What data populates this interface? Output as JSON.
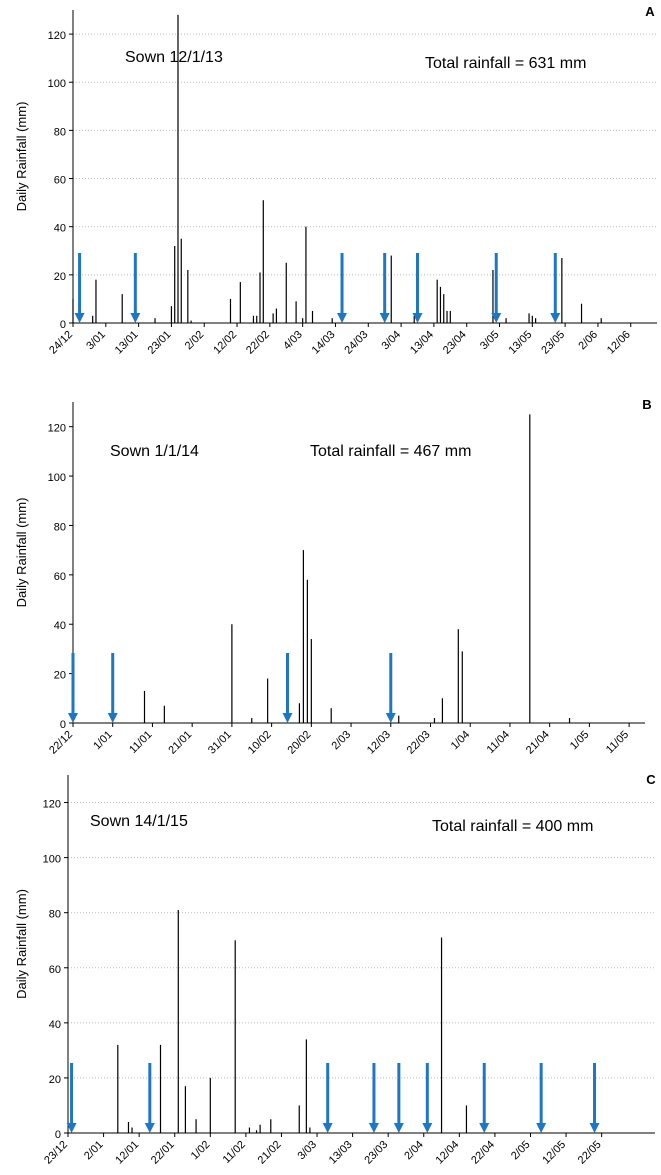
{
  "chart_data": [
    {
      "type": "bar",
      "panel": "A",
      "sown": "Sown   12/1/13",
      "total": "Total rainfall = 631 mm",
      "ylabel": "Daily Rainfall (mm)",
      "color": "#000000",
      "x": [
        "24/12",
        "30/12",
        "31/12",
        "8/01",
        "18/01",
        "23/01",
        "24/01",
        "25/01",
        "26/01",
        "28/01",
        "29/01",
        "10/02",
        "13/02",
        "17/02",
        "18/02",
        "19/02",
        "20/02",
        "23/02",
        "24/02",
        "27/02",
        "2/03",
        "4/03",
        "5/03",
        "7/03",
        "13/03",
        "31/03",
        "7/04",
        "14/04",
        "15/04",
        "16/04",
        "17/04",
        "18/04",
        "1/05",
        "5/05",
        "12/05",
        "13/05",
        "14/05",
        "22/05",
        "28/05",
        "3/06"
      ],
      "values": [
        10,
        3,
        18,
        12,
        2,
        7,
        32,
        128,
        35,
        22,
        1,
        10,
        17,
        3,
        3,
        21,
        51,
        4,
        6,
        25,
        9,
        2,
        40,
        5,
        2,
        28,
        3,
        18,
        15,
        12,
        5,
        5,
        22,
        2,
        4,
        3,
        2,
        27,
        8,
        2
      ],
      "arrows": {
        "color": "#1f77c4",
        "x": [
          "26/12",
          "12/01",
          "16/03",
          "29/03",
          "8/04",
          "2/05",
          "20/05"
        ]
      },
      "xlim": [
        "24/12",
        "20/06"
      ],
      "xticks": [
        "24/12",
        "3/01",
        "13/01",
        "23/01",
        "2/02",
        "12/02",
        "22/02",
        "4/03",
        "14/03",
        "24/03",
        "3/04",
        "13/04",
        "23/04",
        "3/05",
        "13/05",
        "23/05",
        "2/06",
        "12/06"
      ],
      "ylim": [
        0,
        130
      ],
      "yticks": [
        0,
        20,
        40,
        60,
        80,
        100,
        120
      ],
      "grid": true
    },
    {
      "type": "bar",
      "panel": "B",
      "sown": "Sown   1/1/14",
      "total": "Total rainfall  = 467 mm",
      "ylabel": "Daily Rainfall (mm)",
      "color": "#000000",
      "x": [
        "9/01",
        "14/01",
        "31/01",
        "5/02",
        "9/02",
        "17/02",
        "18/02",
        "19/02",
        "20/02",
        "25/02",
        "14/03",
        "23/03",
        "25/03",
        "29/03",
        "30/03",
        "16/04",
        "26/04"
      ],
      "values": [
        13,
        7,
        40,
        2,
        18,
        8,
        70,
        58,
        34,
        6,
        3,
        2,
        10,
        38,
        29,
        125,
        2
      ],
      "arrows": {
        "color": "#1f77c4",
        "x": [
          "22/12",
          "1/01",
          "14/02",
          "12/03"
        ]
      },
      "xlim": [
        "22/12",
        "15/05"
      ],
      "xticks": [
        "22/12",
        "1/01",
        "11/01",
        "21/01",
        "31/01",
        "10/02",
        "20/02",
        "2/03",
        "12/03",
        "22/03",
        "1/04",
        "11/04",
        "21/04",
        "1/05",
        "11/05"
      ],
      "ylim": [
        0,
        130
      ],
      "yticks": [
        0,
        20,
        40,
        60,
        80,
        100,
        120
      ],
      "grid": false
    },
    {
      "type": "bar",
      "panel": "C",
      "sown": "Sown   14/1/15",
      "total": "Total rainfall = 400 mm",
      "ylabel": "Daily Rainfall (mm)",
      "color": "#000000",
      "x": [
        "6/01",
        "9/01",
        "10/01",
        "18/01",
        "23/01",
        "25/01",
        "28/01",
        "1/02",
        "8/02",
        "12/02",
        "14/02",
        "15/02",
        "18/02",
        "26/02",
        "28/02",
        "1/03",
        "7/04",
        "14/04"
      ],
      "values": [
        32,
        4,
        2,
        32,
        81,
        17,
        5,
        20,
        70,
        2,
        1,
        3,
        5,
        10,
        34,
        2,
        71,
        10
      ],
      "arrows": {
        "color": "#1f77c4",
        "x": [
          "24/12",
          "15/01",
          "6/03",
          "19/03",
          "26/03",
          "3/04",
          "19/04",
          "5/05",
          "20/05"
        ]
      },
      "xlim": [
        "23/12",
        "6/06"
      ],
      "xticks": [
        "23/12",
        "2/01",
        "12/01",
        "22/01",
        "1/02",
        "11/02",
        "21/02",
        "3/03",
        "13/03",
        "23/03",
        "2/04",
        "12/04",
        "22/04",
        "2/05",
        "12/05",
        "22/05"
      ],
      "ylim": [
        0,
        130
      ],
      "yticks": [
        0,
        20,
        40,
        60,
        80,
        100,
        120
      ],
      "grid": true
    }
  ]
}
